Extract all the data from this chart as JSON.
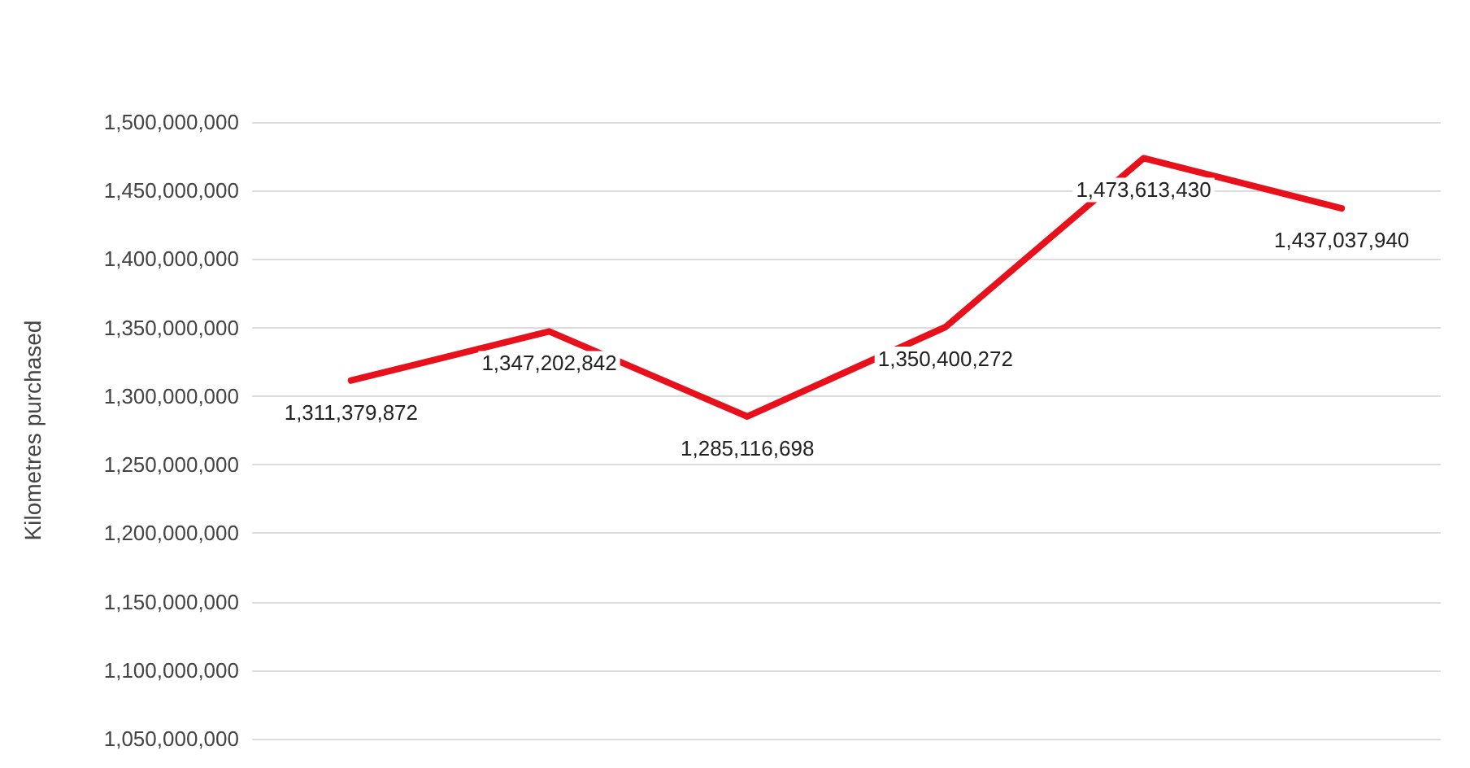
{
  "chart_data": {
    "type": "line",
    "ylabel": "Kilometres purchased",
    "categories": [
      null,
      null,
      null,
      null,
      null,
      null
    ],
    "series": [
      {
        "color": "#e8101a",
        "values": [
          1311379872,
          1347202842,
          1285116698,
          1350400272,
          1473613430,
          1437037940
        ],
        "value_labels": [
          "1,311,379,872",
          "1,347,202,842",
          "1,285,116,698",
          "1,350,400,272",
          "1,473,613,430",
          "1,437,037,940"
        ]
      }
    ],
    "ylim": [
      1050000000,
      1500000000
    ],
    "yticks": [
      {
        "value": 1050000000,
        "label": "1,050,000,000"
      },
      {
        "value": 1100000000,
        "label": "1,100,000,000"
      },
      {
        "value": 1150000000,
        "label": "1,150,000,000"
      },
      {
        "value": 1200000000,
        "label": "1,200,000,000"
      },
      {
        "value": 1250000000,
        "label": "1,250,000,000"
      },
      {
        "value": 1300000000,
        "label": "1,300,000,000"
      },
      {
        "value": 1350000000,
        "label": "1,350,000,000"
      },
      {
        "value": 1400000000,
        "label": "1,400,000,000"
      },
      {
        "value": 1450000000,
        "label": "1,450,000,000"
      },
      {
        "value": 1500000000,
        "label": "1,500,000,000"
      }
    ],
    "grid": "y",
    "marker": "none",
    "line_style": "solid"
  }
}
